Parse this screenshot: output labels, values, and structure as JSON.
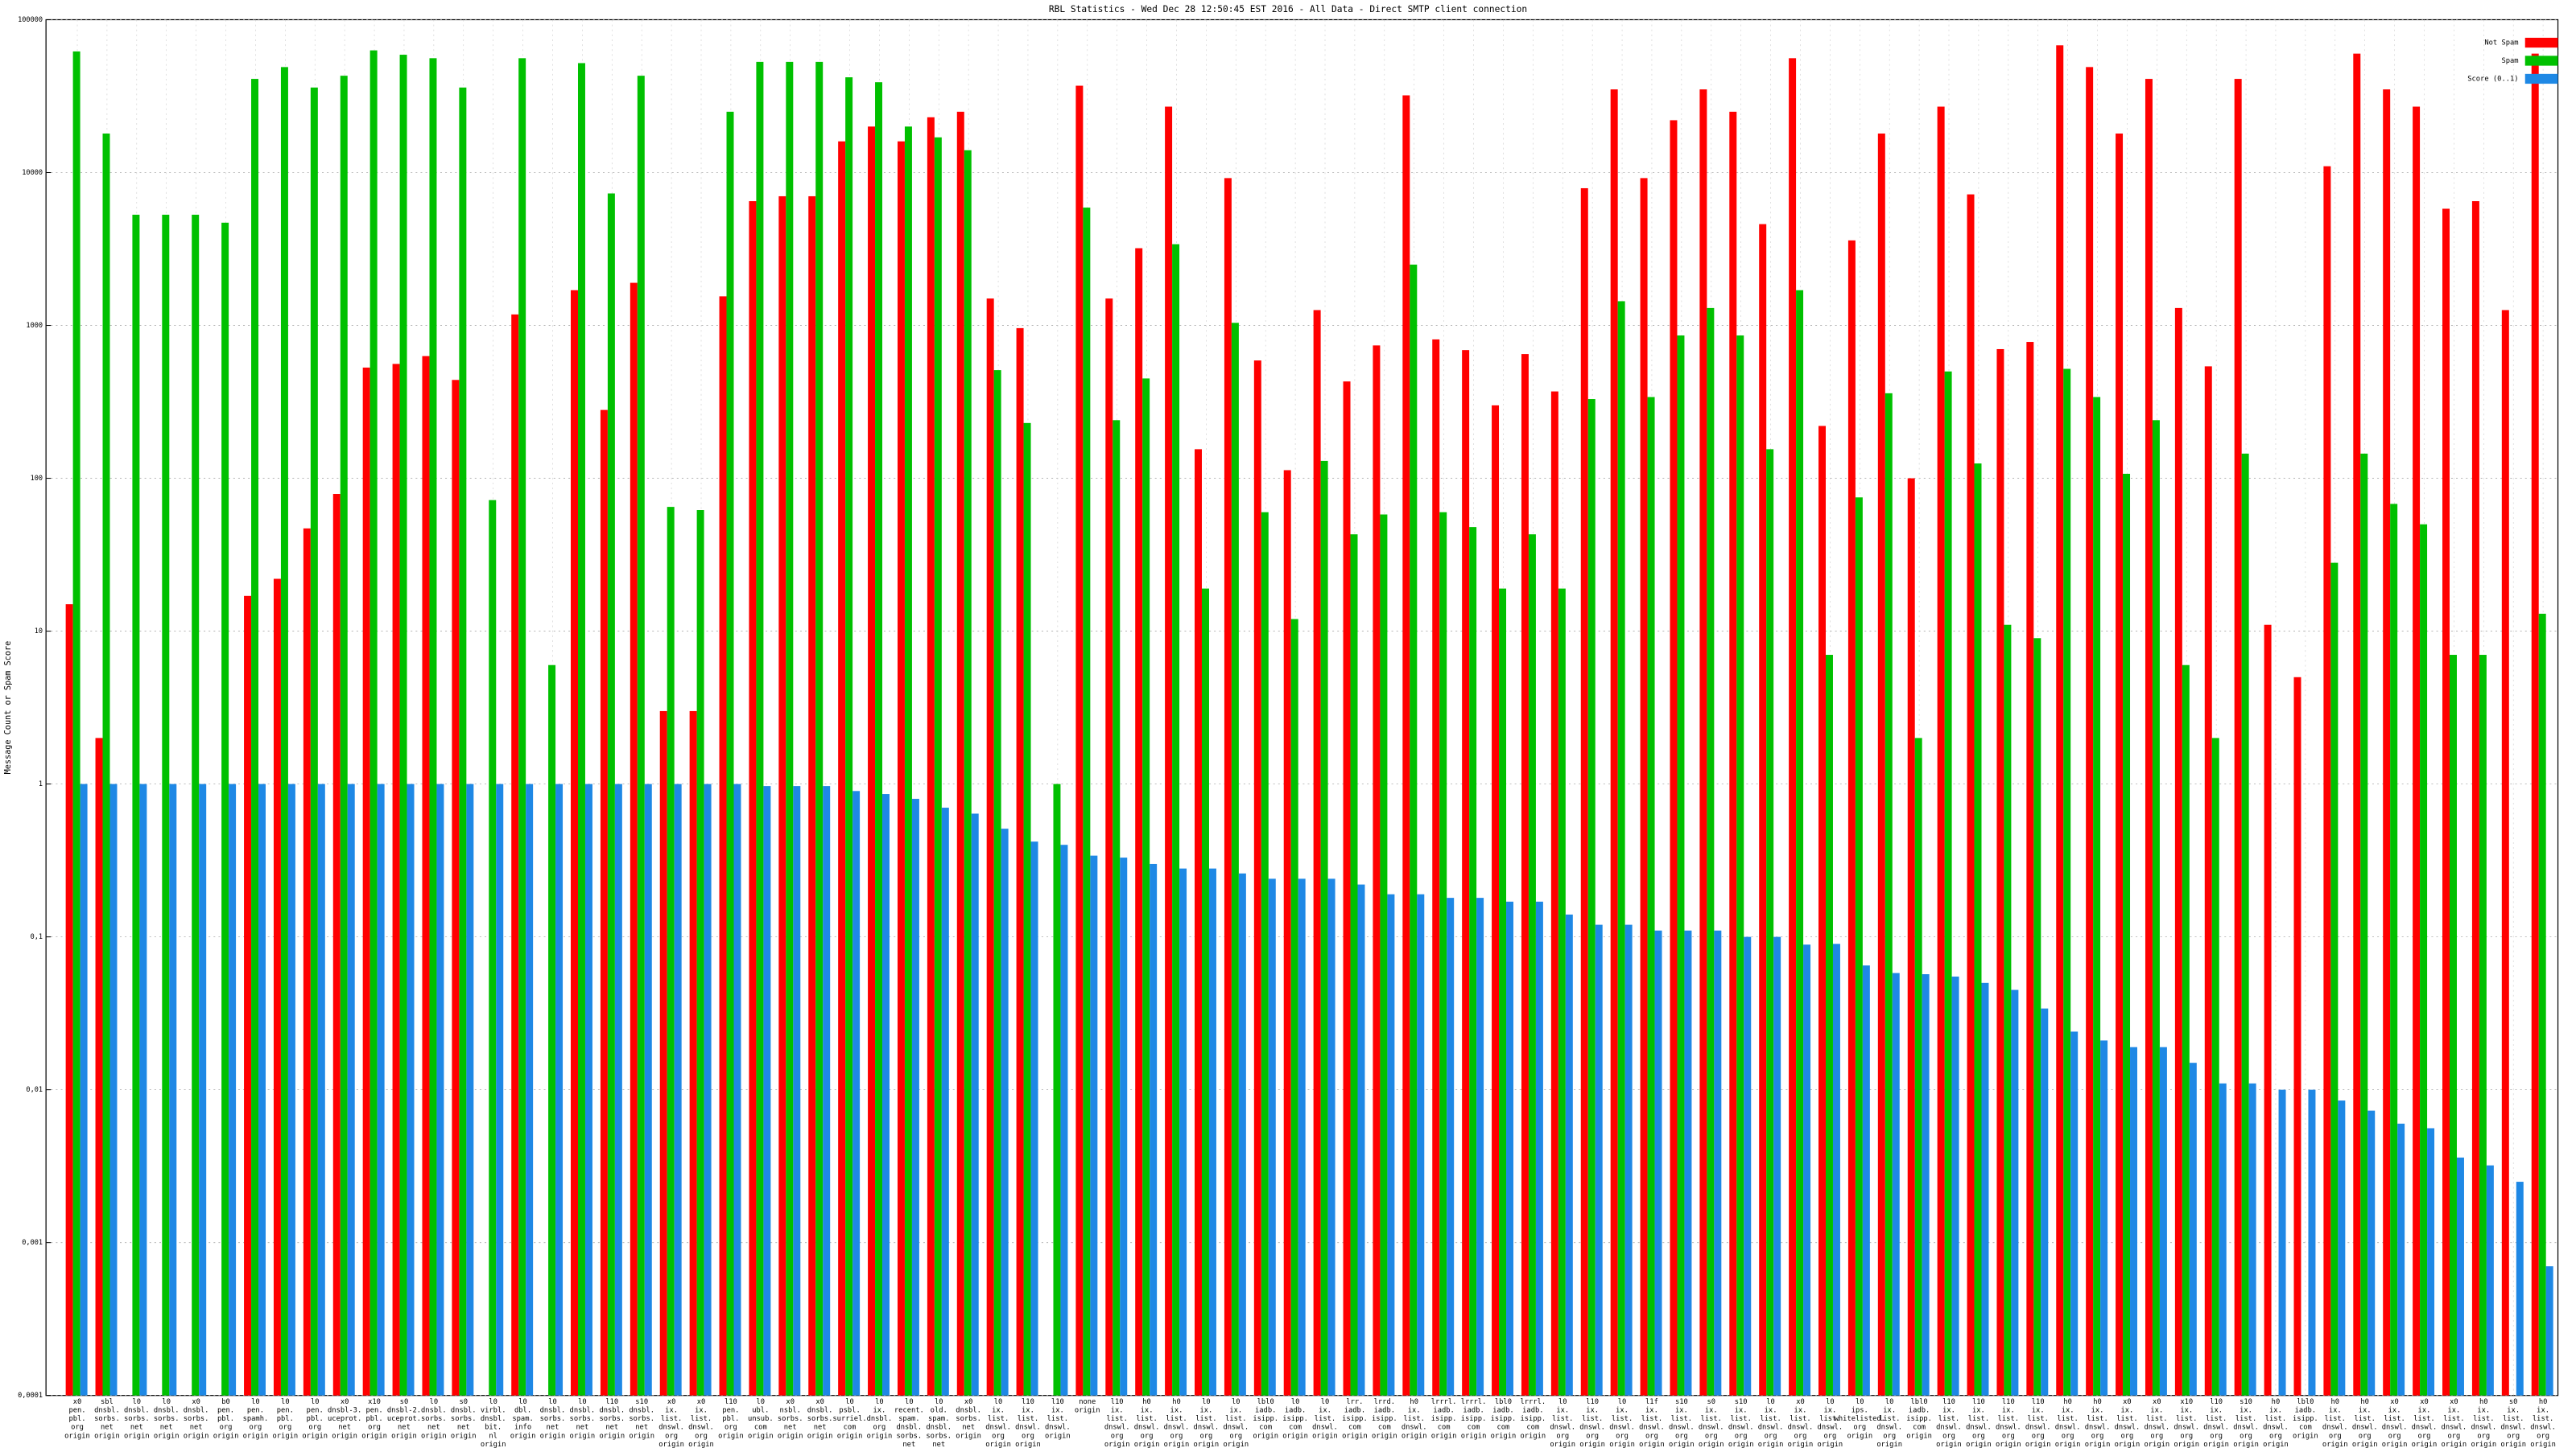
{
  "chart_data": {
    "type": "bar",
    "title": "RBL Statistics - Wed Dec 28 12:50:45 EST 2016 - All Data - Direct SMTP client connection",
    "y_label": "Message Count or Spam Score",
    "log_scale": true,
    "grid": true,
    "legend": "top-right",
    "ylim": [
      0.0001,
      100000
    ],
    "yticks": [
      {
        "value": 0.0001,
        "label": "0,0001"
      },
      {
        "value": 0.001,
        "label": "0,001"
      },
      {
        "value": 0.01,
        "label": "0,01"
      },
      {
        "value": 0.1,
        "label": "0,1"
      },
      1,
      10,
      100,
      1000,
      10000,
      100000
    ],
    "categories": [
      [
        "x0",
        "pen.",
        "pbl.",
        "org",
        "origin"
      ],
      [
        "sbl",
        "dnsbl.",
        "sorbs.",
        "net",
        "origin"
      ],
      [
        "l0",
        "dnsbl.",
        "sorbs.",
        "net",
        "origin"
      ],
      [
        "l0",
        "dnsbl.",
        "sorbs.",
        "net",
        "origin"
      ],
      [
        "x0",
        "dnsbl.",
        "sorbs.",
        "net",
        "origin"
      ],
      [
        "b0",
        "pen.",
        "pbl.",
        "org",
        "origin"
      ],
      [
        "l0",
        "pen.",
        "spamh.",
        "org",
        "origin"
      ],
      [
        "l0",
        "pen.",
        "pbl.",
        "org",
        "origin"
      ],
      [
        "l0",
        "pen.",
        "pbl.",
        "org",
        "origin"
      ],
      [
        "x0",
        "dnsbl-3.",
        "uceprot.",
        "net",
        "origin"
      ],
      [
        "x10",
        "pen.",
        "pbl.",
        "org",
        "origin"
      ],
      [
        "s0",
        "dnsbl-2.",
        "uceprot.",
        "net",
        "origin"
      ],
      [
        "l0",
        "dnsbl.",
        "sorbs.",
        "net",
        "origin"
      ],
      [
        "s0",
        "dnsbl.",
        "sorbs.",
        "net",
        "origin"
      ],
      [
        "l0",
        "virbl.",
        "dnsbl.",
        "bit.",
        "nl",
        "origin"
      ],
      [
        "l0",
        "dbl.",
        "spam.",
        "info",
        "origin"
      ],
      [
        "l0",
        "dnsbl.",
        "sorbs.",
        "net",
        "origin"
      ],
      [
        "l0",
        "dnsbl.",
        "sorbs.",
        "net",
        "origin"
      ],
      [
        "l10",
        "dnsbl.",
        "sorbs.",
        "net",
        "origin"
      ],
      [
        "s10",
        "dnsbl.",
        "sorbs.",
        "net",
        "origin"
      ],
      [
        "x0",
        "ix.",
        "list.",
        "dnswl.",
        "org",
        "origin"
      ],
      [
        "x0",
        "ix.",
        "list.",
        "dnswl.",
        "org",
        "origin"
      ],
      [
        "l10",
        "pen.",
        "pbl.",
        "org",
        "origin"
      ],
      [
        "l0",
        "ubl.",
        "unsub.",
        "com",
        "origin"
      ],
      [
        "x0",
        "nsbl.",
        "sorbs.",
        "net",
        "origin"
      ],
      [
        "x0",
        "dnsbl.",
        "sorbs.",
        "net",
        "origin"
      ],
      [
        "l0",
        "psbl.",
        "surriel.",
        "com",
        "origin"
      ],
      [
        "l0",
        "ix.",
        "dnsbl.",
        "org",
        "origin"
      ],
      [
        "l0",
        "recent.",
        "spam.",
        "dnsbl.",
        "sorbs.",
        "net",
        "origin"
      ],
      [
        "l0",
        "old.",
        "spam.",
        "dnsbl.",
        "sorbs.",
        "net",
        "origin"
      ],
      [
        "x0",
        "dnsbl.",
        "sorbs.",
        "net",
        "origin"
      ],
      [
        "l0",
        "ix.",
        "list.",
        "dnswl.",
        "org",
        "origin"
      ],
      [
        "l10",
        "ix.",
        "list.",
        "dnswl.",
        "org",
        "origin"
      ],
      [
        "l10",
        "ix.",
        "list.",
        "dnswl.",
        "origin"
      ],
      [
        "none",
        "origin"
      ],
      [
        "l10",
        "ix.",
        "list.",
        "dnswl.",
        "org",
        "origin"
      ],
      [
        "h0",
        "ix.",
        "list.",
        "dnswl.",
        "org",
        "origin"
      ],
      [
        "h0",
        "ix.",
        "list.",
        "dnswl.",
        "org",
        "origin"
      ],
      [
        "l0",
        "ix.",
        "list.",
        "dnswl.",
        "org",
        "origin"
      ],
      [
        "l0",
        "ix.",
        "list.",
        "dnswl.",
        "org",
        "origin"
      ],
      [
        "lbl0",
        "iadb.",
        "isipp.",
        "com",
        "origin"
      ],
      [
        "l0",
        "iadb.",
        "isipp.",
        "com",
        "origin"
      ],
      [
        "l0",
        "ix.",
        "list.",
        "dnswl.",
        "origin"
      ],
      [
        "lrr.",
        "iadb.",
        "isipp.",
        "com",
        "origin"
      ],
      [
        "lrrd.",
        "iadb.",
        "isipp.",
        "com",
        "origin"
      ],
      [
        "h0",
        "ix.",
        "list.",
        "dnswl.",
        "origin"
      ],
      [
        "lrrrl.",
        "iadb.",
        "isipp.",
        "com",
        "origin"
      ],
      [
        "lrrrl.",
        "iadb.",
        "isipp.",
        "com",
        "origin"
      ],
      [
        "lbl0",
        "iadb.",
        "isipp.",
        "com",
        "origin"
      ],
      [
        "lrrrl.",
        "iadb.",
        "isipp.",
        "com",
        "origin"
      ],
      [
        "l0",
        "ix.",
        "list.",
        "dnswl.",
        "org",
        "origin"
      ],
      [
        "l10",
        "ix.",
        "list.",
        "dnswl.",
        "org",
        "origin"
      ],
      [
        "l0",
        "ix.",
        "list.",
        "dnswl.",
        "org",
        "origin"
      ],
      [
        "l1f",
        "ix.",
        "list.",
        "dnswl.",
        "org",
        "origin"
      ],
      [
        "s10",
        "ix.",
        "list.",
        "dnswl.",
        "org",
        "origin"
      ],
      [
        "s0",
        "ix.",
        "list.",
        "dnswl.",
        "org",
        "origin"
      ],
      [
        "s10",
        "ix.",
        "list.",
        "dnswl.",
        "org",
        "origin"
      ],
      [
        "l0",
        "ix.",
        "list.",
        "dnswl.",
        "org",
        "origin"
      ],
      [
        "x0",
        "ix.",
        "list.",
        "dnswl.",
        "org",
        "origin"
      ],
      [
        "l0",
        "ix.",
        "list.",
        "dnswl.",
        "org",
        "origin"
      ],
      [
        "l0",
        "ips.",
        "whitelisted.",
        "org",
        "origin"
      ],
      [
        "l0",
        "ix.",
        "list.",
        "dnswl.",
        "org",
        "origin"
      ],
      [
        "lbl0",
        "iadb.",
        "isipp.",
        "com",
        "origin"
      ],
      [
        "l10",
        "ix.",
        "list.",
        "dnswl.",
        "org",
        "origin"
      ],
      [
        "l10",
        "ix.",
        "list.",
        "dnswl.",
        "org",
        "origin"
      ],
      [
        "l10",
        "ix.",
        "list.",
        "dnswl.",
        "org",
        "origin"
      ],
      [
        "l10",
        "ix.",
        "list.",
        "dnswl.",
        "org",
        "origin"
      ],
      [
        "h0",
        "ix.",
        "list.",
        "dnswl.",
        "org",
        "origin"
      ],
      [
        "h0",
        "ix.",
        "list.",
        "dnswl.",
        "org",
        "origin"
      ],
      [
        "x0",
        "ix.",
        "list.",
        "dnswl.",
        "org",
        "origin"
      ],
      [
        "x0",
        "ix.",
        "list.",
        "dnswl.",
        "org",
        "origin"
      ],
      [
        "x10",
        "ix.",
        "list.",
        "dnswl.",
        "org",
        "origin"
      ],
      [
        "l10",
        "ix.",
        "list.",
        "dnswl.",
        "org",
        "origin"
      ],
      [
        "s10",
        "ix.",
        "list.",
        "dnswl.",
        "org",
        "origin"
      ],
      [
        "h0",
        "ix.",
        "list.",
        "dnswl.",
        "org",
        "origin"
      ],
      [
        "lbl0",
        "iadb.",
        "isipp.",
        "com",
        "origin"
      ],
      [
        "h0",
        "ix.",
        "list.",
        "dnswl.",
        "org",
        "origin"
      ],
      [
        "h0",
        "ix.",
        "list.",
        "dnswl.",
        "org",
        "origin"
      ],
      [
        "x0",
        "ix.",
        "list.",
        "dnswl.",
        "org",
        "origin"
      ],
      [
        "x0",
        "ix.",
        "list.",
        "dnswl.",
        "org",
        "origin"
      ],
      [
        "x0",
        "ix.",
        "list.",
        "dnswl.",
        "org",
        "origin"
      ],
      [
        "h0",
        "ix.",
        "list.",
        "dnswl.",
        "org",
        "origin"
      ],
      [
        "s0",
        "ix.",
        "list.",
        "dnswl.",
        "org",
        "origin"
      ],
      [
        "h0",
        "ix.",
        "list.",
        "dnswl.",
        "org",
        "origin"
      ]
    ],
    "series": [
      {
        "name": "Not Spam",
        "color": "#ff0000",
        "values": [
          15,
          2,
          null,
          null,
          null,
          null,
          17,
          22,
          47,
          79,
          530,
          560,
          630,
          440,
          null,
          1180,
          null,
          1700,
          280,
          1900,
          3,
          3,
          1550,
          6500,
          7000,
          7000,
          16000,
          20000,
          16000,
          23000,
          25000,
          1500,
          960,
          null,
          37000,
          1500,
          3200,
          27000,
          155,
          9200,
          590,
          113,
          1260,
          430,
          740,
          32000,
          810,
          690,
          300,
          650,
          370,
          7900,
          35000,
          9200,
          22000,
          35000,
          25000,
          4600,
          56000,
          220,
          3600,
          18000,
          100,
          27000,
          7200,
          700,
          780,
          68000,
          49000,
          18000,
          41000,
          1300,
          540,
          41000,
          11,
          5,
          11000,
          60000,
          35000,
          27000,
          5800,
          6500,
          1260,
          60000
        ]
      },
      {
        "name": "Spam",
        "color": "#00c000",
        "values": [
          62000,
          18000,
          5300,
          5300,
          5300,
          4700,
          41000,
          49000,
          36000,
          43000,
          63000,
          59000,
          56000,
          36000,
          72,
          56000,
          6,
          52000,
          7300,
          43000,
          65,
          62,
          25000,
          53000,
          53000,
          53000,
          42000,
          39000,
          20000,
          17000,
          14000,
          510,
          230,
          1,
          5900,
          240,
          450,
          3400,
          19,
          1040,
          60,
          12,
          130,
          43,
          58,
          2500,
          60,
          48,
          19,
          43,
          19,
          330,
          1440,
          340,
          860,
          1300,
          860,
          155,
          1700,
          7,
          75,
          360,
          2,
          500,
          125,
          11,
          9,
          520,
          340,
          107,
          240,
          6,
          2,
          145,
          null,
          null,
          28,
          145,
          68,
          50,
          7,
          7,
          null,
          13
        ]
      },
      {
        "name": "Score (0..1)",
        "color": "#1e88e5",
        "values": [
          1,
          1,
          1,
          1,
          1,
          1,
          1,
          1,
          1,
          1,
          1,
          1,
          1,
          1,
          1,
          1,
          1,
          1,
          1,
          1,
          1,
          1,
          1,
          0.97,
          0.97,
          0.97,
          0.9,
          0.86,
          0.8,
          0.7,
          0.64,
          0.51,
          0.42,
          0.4,
          0.34,
          0.33,
          0.3,
          0.28,
          0.28,
          0.26,
          0.24,
          0.24,
          0.24,
          0.22,
          0.19,
          0.19,
          0.18,
          0.18,
          0.17,
          0.17,
          0.14,
          0.12,
          0.12,
          0.11,
          0.11,
          0.11,
          0.1,
          0.1,
          0.089,
          0.09,
          0.065,
          0.058,
          0.057,
          0.055,
          0.05,
          0.045,
          0.034,
          0.024,
          0.021,
          0.019,
          0.019,
          0.015,
          0.011,
          0.011,
          0.01,
          0.01,
          0.0085,
          0.0073,
          0.006,
          0.0056,
          0.0036,
          0.0032,
          0.0025,
          0.0007
        ]
      }
    ]
  }
}
